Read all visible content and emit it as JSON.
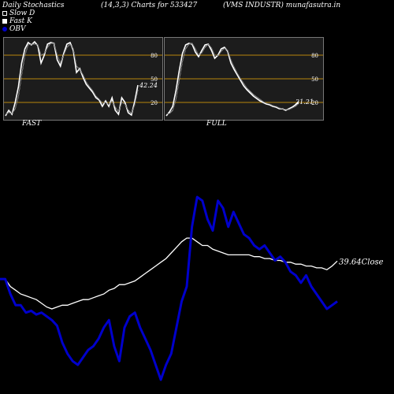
{
  "header": {
    "title": "Daily Stochastics",
    "params": "(14,3,3) Charts for 533427",
    "company": "(VMS INDUSTR) munafasutra.in"
  },
  "legend": [
    "Slow  D",
    "Fast K",
    "OBV"
  ],
  "colors": {
    "background": "#000000",
    "panel": "#1c1c1c",
    "level_line": "#b8860b",
    "obv": "#0000cc",
    "price": "#ffffff"
  },
  "chart_data": [
    {
      "type": "line",
      "title": "FAST",
      "ylim": [
        0,
        100
      ],
      "levels": [
        20,
        50,
        80
      ],
      "tick_labels": [
        "80",
        "50",
        "20"
      ],
      "last_value_label": "42.24",
      "series": [
        {
          "name": "Fast K",
          "values": [
            3,
            10,
            5,
            20,
            40,
            70,
            88,
            96,
            93,
            97,
            92,
            70,
            80,
            94,
            96,
            95,
            74,
            66,
            82,
            94,
            96,
            86,
            58,
            63,
            52,
            43,
            38,
            33,
            26,
            23,
            15,
            22,
            15,
            26,
            10,
            5,
            26,
            20,
            7,
            4,
            21,
            42
          ]
        },
        {
          "name": "Slow D",
          "values": [
            5,
            7,
            6,
            12,
            28,
            55,
            80,
            93,
            94,
            94,
            93,
            80,
            82,
            90,
            95,
            95,
            80,
            70,
            80,
            90,
            94,
            88,
            66,
            62,
            55,
            46,
            40,
            35,
            28,
            24,
            19,
            20,
            17,
            22,
            14,
            8,
            20,
            18,
            10,
            6,
            17,
            36
          ]
        }
      ]
    },
    {
      "type": "line",
      "title": "FULL",
      "ylim": [
        0,
        100
      ],
      "levels": [
        20,
        50,
        80
      ],
      "tick_labels": [
        "80",
        "50",
        "20"
      ],
      "last_value_label": "21.21",
      "series": [
        {
          "name": "Full K",
          "values": [
            3,
            8,
            15,
            35,
            60,
            82,
            93,
            95,
            94,
            84,
            78,
            86,
            93,
            94,
            86,
            76,
            80,
            88,
            90,
            85,
            70,
            62,
            55,
            48,
            41,
            36,
            32,
            28,
            25,
            22,
            20,
            18,
            17,
            15,
            14,
            12,
            12,
            10,
            12,
            14,
            17,
            21
          ]
        },
        {
          "name": "Full D",
          "values": [
            5,
            6,
            10,
            24,
            48,
            72,
            88,
            94,
            95,
            88,
            80,
            83,
            90,
            94,
            89,
            80,
            79,
            85,
            89,
            86,
            74,
            65,
            57,
            50,
            44,
            38,
            34,
            30,
            27,
            24,
            21,
            19,
            18,
            16,
            15,
            13,
            12,
            11,
            11,
            13,
            15,
            19
          ]
        }
      ]
    },
    {
      "type": "line",
      "last_value_label": "39.64",
      "close_label": "Close",
      "series": [
        {
          "name": "OBV",
          "values": [
            30,
            30,
            22,
            16,
            16,
            12,
            13,
            11,
            12,
            10,
            8,
            5,
            -4,
            -10,
            -14,
            -16,
            -12,
            -8,
            -6,
            -2,
            4,
            8,
            -6,
            -14,
            4,
            10,
            12,
            4,
            -2,
            -8,
            -16,
            -24,
            -16,
            -10,
            4,
            18,
            26,
            58,
            74,
            72,
            62,
            56,
            72,
            68,
            58,
            66,
            60,
            54,
            52,
            48,
            46,
            48,
            44,
            40,
            42,
            39,
            34,
            32,
            28,
            32,
            26,
            22,
            18,
            14,
            16,
            18
          ]
        },
        {
          "name": "Close",
          "values": [
            30,
            30,
            26,
            24,
            22,
            21,
            20,
            19,
            17,
            15,
            14,
            15,
            16,
            16,
            17,
            18,
            19,
            19,
            20,
            21,
            22,
            24,
            25,
            27,
            27,
            28,
            29,
            31,
            33,
            35,
            37,
            39,
            41,
            44,
            47,
            50,
            52,
            52,
            50,
            48,
            48,
            46,
            45,
            44,
            43,
            43,
            43,
            43,
            43,
            42,
            42,
            41,
            41,
            40,
            40,
            39,
            39,
            38,
            38,
            37,
            37,
            36,
            36,
            35,
            37,
            39.64
          ]
        }
      ]
    }
  ]
}
